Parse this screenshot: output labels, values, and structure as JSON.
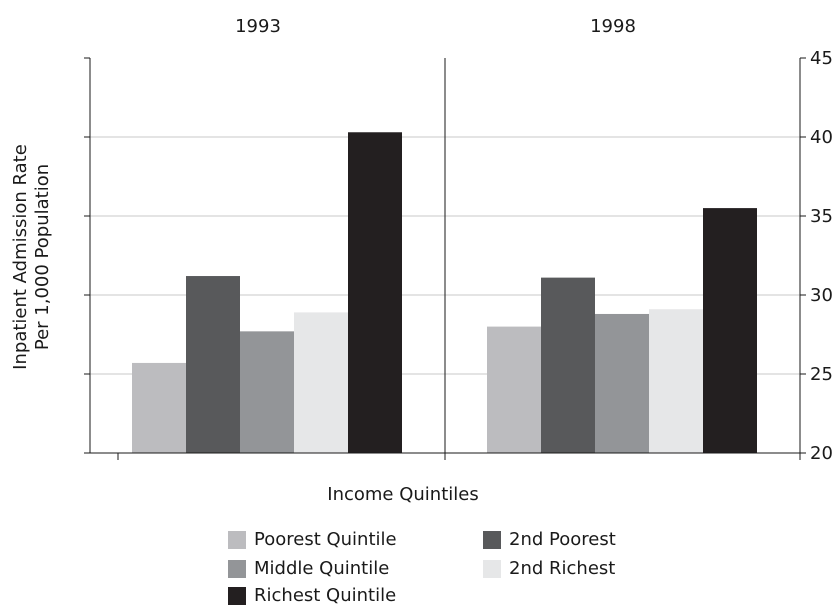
{
  "chart_data": {
    "type": "bar",
    "panels": [
      "1993",
      "1998"
    ],
    "xlabel": "Income Quintiles",
    "ylabel_lines": [
      "Inpatient Admission Rate",
      "Per 1,000 Population"
    ],
    "ylim": [
      20,
      45
    ],
    "yticks": [
      20,
      25,
      30,
      35,
      40,
      45
    ],
    "grid": true,
    "legend_position": "bottom",
    "series": [
      {
        "name": "Poorest Quintile",
        "color": "#bcbcbf",
        "values": [
          25.7,
          28.0
        ]
      },
      {
        "name": "2nd Poorest",
        "color": "#58595b",
        "values": [
          31.2,
          31.1
        ]
      },
      {
        "name": "Middle Quintile",
        "color": "#939598",
        "values": [
          27.7,
          28.8
        ]
      },
      {
        "name": "2nd Richest",
        "color": "#e6e7e8",
        "values": [
          28.9,
          29.1
        ]
      },
      {
        "name": "Richest Quintile",
        "color": "#231f20",
        "values": [
          40.3,
          35.5
        ]
      }
    ]
  }
}
